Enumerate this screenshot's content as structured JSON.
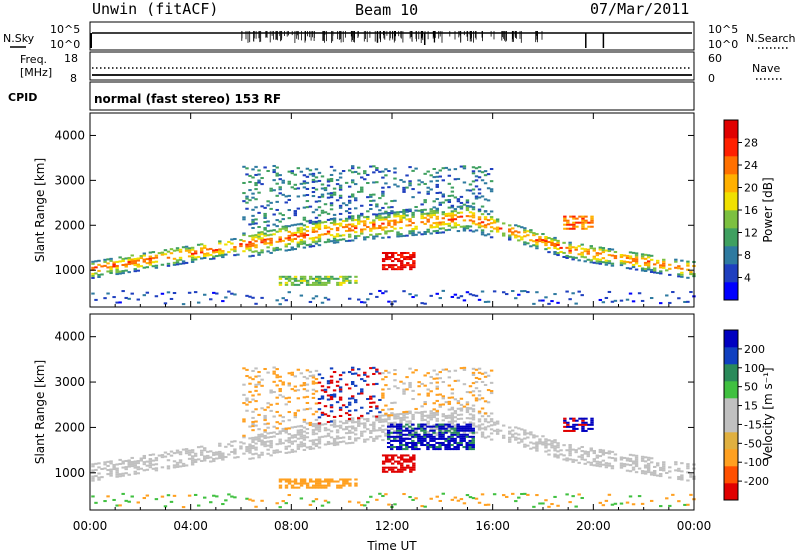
{
  "header": {
    "site_title": "Unwin (fitACF)",
    "beam_label": "Beam 10",
    "date_label": "07/Mar/2011"
  },
  "status_panels": {
    "nsky": {
      "left_label": "N.Sky",
      "left_ticks": [
        "10^5",
        "10^0"
      ],
      "right_label": "N.Search",
      "right_ticks": [
        "10^5",
        "10^0"
      ]
    },
    "freq": {
      "left_label_line1": "Freq.",
      "left_label_line2": "[MHz]",
      "left_ticks": [
        "18",
        "8"
      ],
      "right_label": "Nave",
      "right_ticks": [
        "60",
        "0"
      ],
      "freq_mhz_range": [
        8,
        18
      ],
      "nave_range": [
        0,
        60
      ]
    },
    "cpid": {
      "label": "CPID",
      "mode_text": "normal (fast stereo) 153 RF"
    }
  },
  "chart_data": [
    {
      "type": "heatmap",
      "panel": "power",
      "ylabel": "Slant Range [km]",
      "ylim": [
        180,
        4500
      ],
      "yticks": [
        1000,
        2000,
        3000,
        4000
      ],
      "xlabel": "",
      "xlim_hours": [
        0,
        24
      ],
      "xticks": [
        "00:00",
        "04:00",
        "08:00",
        "12:00",
        "16:00",
        "20:00",
        "00:00"
      ],
      "colorbar": {
        "label": "Power [dB]",
        "ticks": [
          "28",
          "24",
          "20",
          "16",
          "12",
          "8",
          "4"
        ],
        "range": [
          0,
          30
        ],
        "colors": [
          "#0000ff",
          "#1f3fbf",
          "#2e7aa0",
          "#3fa060",
          "#7cc040",
          "#f0e000",
          "#ffb000",
          "#ff7000",
          "#ff2000",
          "#e00000"
        ]
      }
    },
    {
      "type": "heatmap",
      "panel": "velocity",
      "ylabel": "Slant Range [km]",
      "ylim": [
        180,
        4500
      ],
      "yticks": [
        1000,
        2000,
        3000,
        4000
      ],
      "xlabel": "Time UT",
      "xlim_hours": [
        0,
        24
      ],
      "xticks": [
        "00:00",
        "04:00",
        "08:00",
        "12:00",
        "16:00",
        "20:00",
        "00:00"
      ],
      "colorbar": {
        "label": "Velocity [m s⁻¹]",
        "ticks": [
          "200",
          "100",
          "50",
          "15",
          "-15",
          "-50",
          "-100",
          "-200"
        ],
        "range": [
          -250,
          250
        ],
        "colors": [
          "#e00000",
          "#ff5000",
          "#ffa020",
          "#e0b040",
          "#c0c0c0",
          "#c0c0c0",
          "#40c040",
          "#2a8a5a",
          "#1040c0",
          "#0000c0"
        ]
      }
    }
  ]
}
